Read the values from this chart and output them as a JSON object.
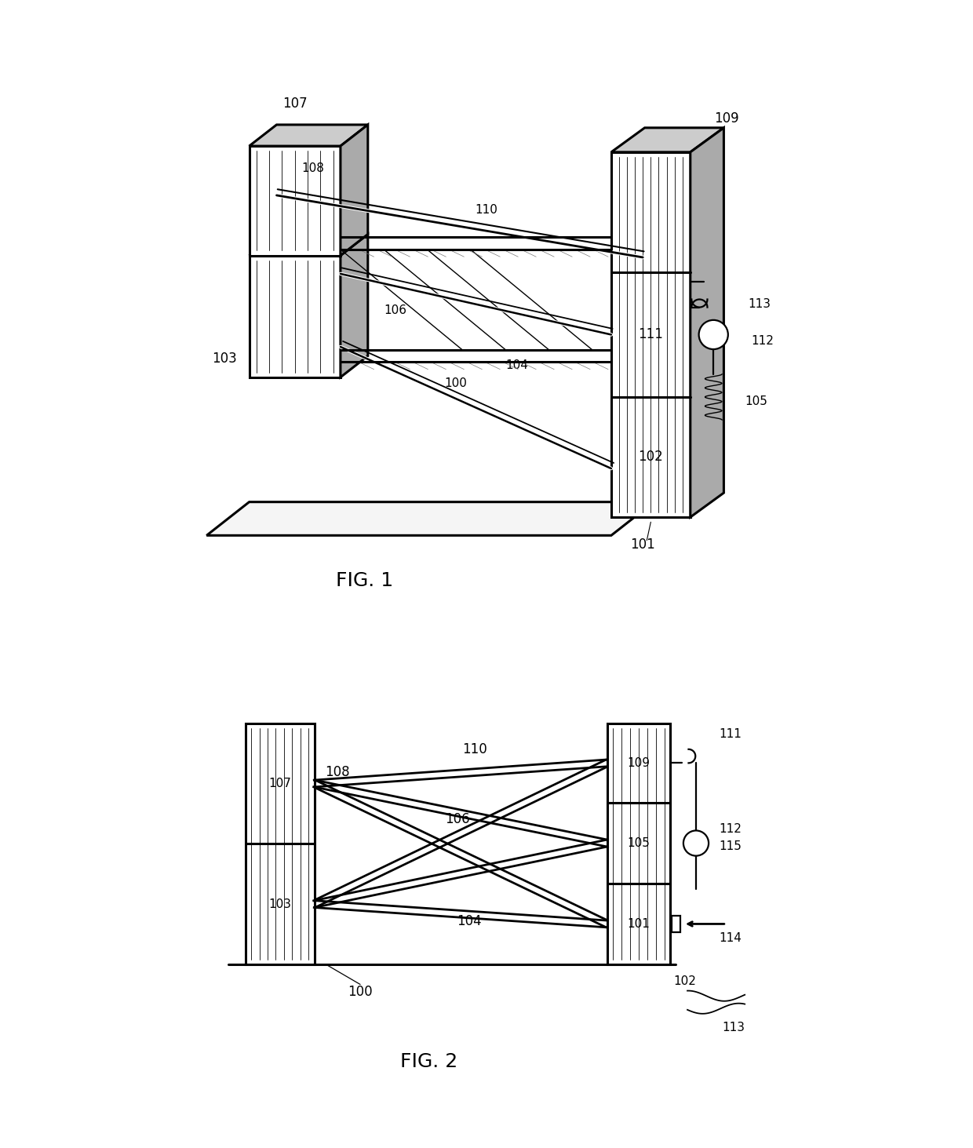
{
  "bg_color": "#ffffff",
  "line_color": "#000000",
  "fig_width": 12.4,
  "fig_height": 14.63,
  "lw_thick": 2.2,
  "lw_med": 1.6,
  "lw_thin": 1.0
}
